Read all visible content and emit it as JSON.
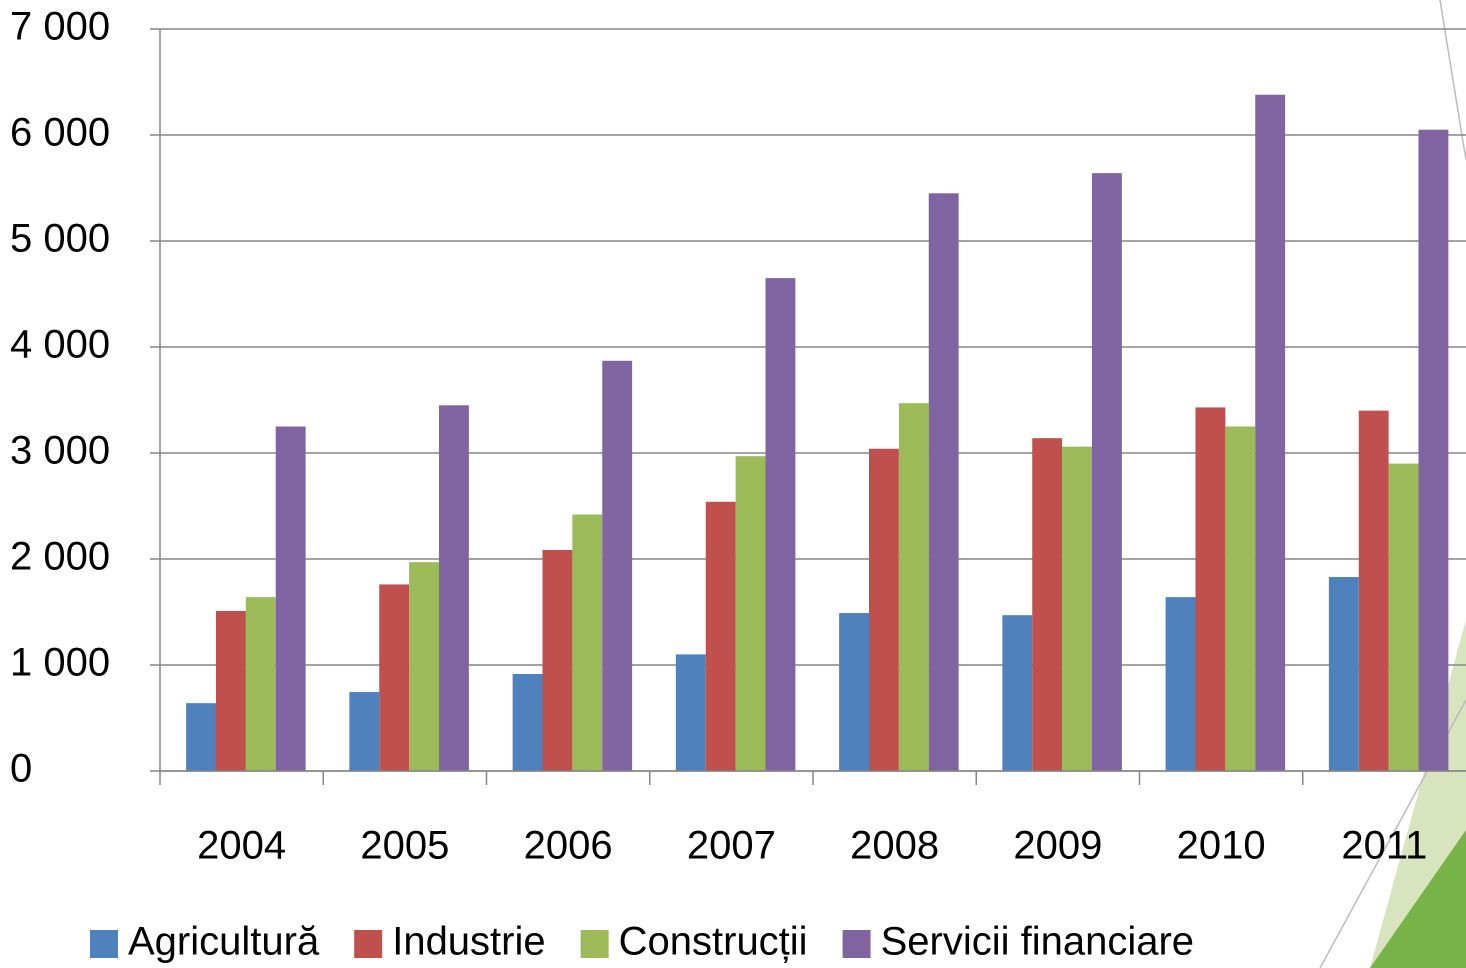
{
  "chart_data": {
    "type": "bar",
    "categories": [
      "2004",
      "2005",
      "2006",
      "2007",
      "2008",
      "2009",
      "2010",
      "2011"
    ],
    "series": [
      {
        "name": "Agricultură",
        "color": "#4f81bd",
        "values": [
          640,
          745,
          915,
          1100,
          1490,
          1470,
          1640,
          1830
        ]
      },
      {
        "name": "Industrie",
        "color": "#c0504d",
        "values": [
          1510,
          1760,
          2085,
          2540,
          3040,
          3140,
          3430,
          3400
        ]
      },
      {
        "name": "Construcții",
        "color": "#9bbb59",
        "values": [
          1640,
          1970,
          2420,
          2970,
          3470,
          3060,
          3250,
          2900
        ]
      },
      {
        "name": "Servicii financiare",
        "color": "#8064a2",
        "values": [
          3250,
          3450,
          3870,
          4650,
          5450,
          5640,
          6380,
          6050
        ]
      }
    ],
    "ylim": [
      0,
      7000
    ],
    "yticks": [
      0,
      {
        "value": 1000,
        "label": "1 000"
      },
      {
        "value": 2000,
        "label": "2 000"
      },
      {
        "value": 3000,
        "label": "3 000"
      },
      {
        "value": 4000,
        "label": "4 000"
      },
      {
        "value": 5000,
        "label": "5 000"
      },
      {
        "value": 6000,
        "label": "6 000"
      },
      {
        "value": 7000,
        "label": "7 000"
      }
    ],
    "grid": true,
    "legend": "bottom"
  }
}
